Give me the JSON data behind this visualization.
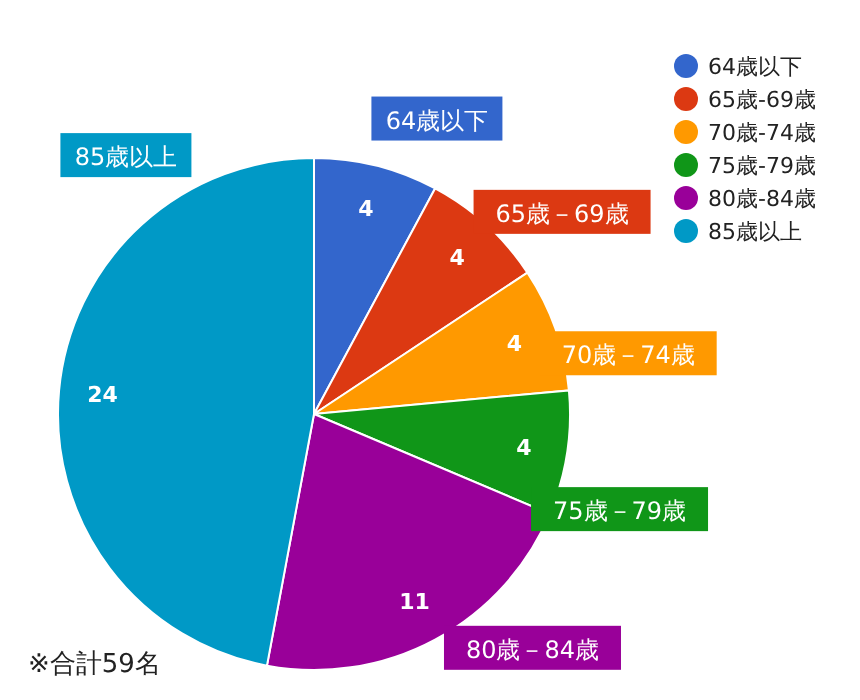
{
  "chart_data": {
    "type": "pie",
    "categories": [
      "64歳以下",
      "65歳-69歳",
      "70歳-74歳",
      "75歳-79歳",
      "80歳-84歳",
      "85歳以上"
    ],
    "values": [
      4,
      4,
      4,
      4,
      11,
      24
    ],
    "colors": [
      "#3366cc",
      "#dc3912",
      "#ff9900",
      "#109618",
      "#990099",
      "#0099c6"
    ],
    "data_labels": true,
    "legend": "top right",
    "annotations": [
      "64歳以下",
      "65歳－69歳",
      "70歳－74歳",
      "75歳－79歳",
      "80歳－84歳",
      "85歳以上",
      "※合計59名"
    ]
  }
}
